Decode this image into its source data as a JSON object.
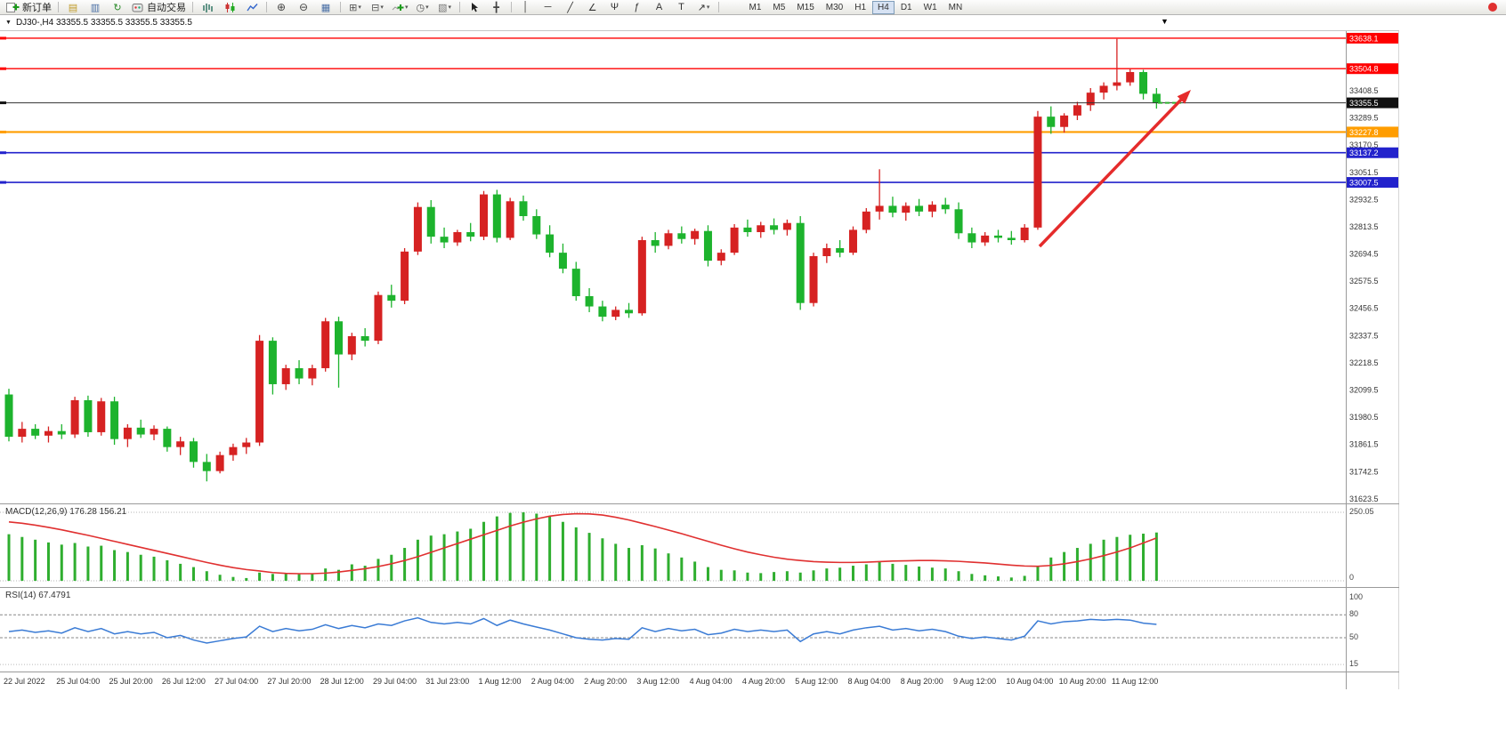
{
  "toolbar": {
    "items": [
      {
        "name": "new-order-button",
        "icon": "new-order",
        "label": "新订单"
      },
      {
        "name": "separator"
      },
      {
        "name": "market-watch-button",
        "glyph": "▤",
        "color": "#c09a28"
      },
      {
        "name": "data-window-button",
        "glyph": "▥",
        "color": "#4a6fa5"
      },
      {
        "name": "refresh-button",
        "glyph": "↻",
        "color": "#2a8a2a"
      },
      {
        "name": "autotrading-button",
        "icon": "autotrading",
        "label": "自动交易"
      },
      {
        "name": "separator"
      },
      {
        "name": "bar-chart-button",
        "icon": "bars"
      },
      {
        "name": "candlestick-chart-button",
        "icon": "candles"
      },
      {
        "name": "line-chart-button",
        "icon": "linechart"
      },
      {
        "name": "separator"
      },
      {
        "name": "zoom-in-button",
        "glyph": "⊕",
        "color": "#444",
        "size": "12px"
      },
      {
        "name": "zoom-out-button",
        "glyph": "⊖",
        "color": "#444",
        "size": "12px"
      },
      {
        "name": "tile-windows-button",
        "glyph": "▦",
        "color": "#4a6fa5"
      },
      {
        "name": "separator"
      },
      {
        "name": "new-chart-button",
        "glyph": "⊞",
        "color": "#555",
        "caret": true
      },
      {
        "name": "profiles-button",
        "glyph": "⊟",
        "color": "#555",
        "caret": true
      },
      {
        "name": "indicators-button",
        "icon": "indicator",
        "caret": true
      },
      {
        "name": "periods-button",
        "glyph": "◷",
        "color": "#555",
        "caret": true
      },
      {
        "name": "templates-button",
        "glyph": "▧",
        "color": "#777",
        "caret": true
      },
      {
        "name": "separator"
      },
      {
        "name": "cursor-button",
        "icon": "cursor"
      },
      {
        "name": "crosshair-button",
        "glyph": "╋",
        "color": "#444"
      },
      {
        "name": "separator"
      },
      {
        "name": "vertical-line-button",
        "glyph": "│",
        "color": "#333"
      },
      {
        "name": "horizontal-line-button",
        "glyph": "─",
        "color": "#333"
      },
      {
        "name": "trendline-button",
        "glyph": "╱",
        "color": "#333"
      },
      {
        "name": "equidistant-channel-button",
        "glyph": "∠",
        "color": "#333"
      },
      {
        "name": "andrews-pitchfork-button",
        "glyph": "Ψ",
        "color": "#333"
      },
      {
        "name": "fibonacci-button",
        "glyph": "ƒ",
        "color": "#333"
      },
      {
        "name": "text-button",
        "glyph": "A",
        "color": "#333"
      },
      {
        "name": "label-button",
        "glyph": "T",
        "color": "#333"
      },
      {
        "name": "arrows-button",
        "glyph": "↗",
        "color": "#333",
        "caret": true
      },
      {
        "name": "separator"
      }
    ],
    "timeframes": [
      "M1",
      "M5",
      "M15",
      "M30",
      "H1",
      "H4",
      "D1",
      "W1",
      "MN"
    ],
    "active_timeframe": "H4",
    "notification_color": "#e03030"
  },
  "chart": {
    "collapse_marker": "▼",
    "shift_marker": "▼",
    "title": "DJ30-,H4 33355.5 33355.5 33355.5 33355.5"
  },
  "macd": {
    "label_text": "MACD(12,26,9) 176.28 156.21",
    "scale_max": "250.05",
    "scale_min": "0"
  },
  "rsi": {
    "label_text": "RSI(14) 67.4791",
    "levels": [
      "100",
      "80",
      "50",
      "15"
    ]
  },
  "chart_data": {
    "type": "candlestick",
    "symbol": "DJ30-",
    "timeframe": "H4",
    "current_price": 33355.5,
    "ohlc_current": {
      "open": 33355.5,
      "high": 33355.5,
      "low": 33355.5,
      "close": 33355.5
    },
    "bull_color": "#d62222",
    "bear_color": "#1db32d",
    "price_axis_ticks": [
      "33408.5",
      "33289.5",
      "33170.5",
      "33051.5",
      "32932.5",
      "32813.5",
      "32694.5",
      "32575.5",
      "32456.5",
      "32337.5",
      "32218.5",
      "32099.5",
      "31980.5",
      "31861.5",
      "31742.5",
      "31623.5"
    ],
    "x_labels": [
      "22 Jul 2022",
      "25 Jul 04:00",
      "25 Jul 20:00",
      "26 Jul 12:00",
      "27 Jul 04:00",
      "27 Jul 20:00",
      "28 Jul 12:00",
      "29 Jul 04:00",
      "31 Jul 23:00",
      "1 Aug 12:00",
      "2 Aug 04:00",
      "2 Aug 20:00",
      "3 Aug 12:00",
      "4 Aug 04:00",
      "4 Aug 20:00",
      "5 Aug 12:00",
      "8 Aug 04:00",
      "8 Aug 20:00",
      "9 Aug 12:00",
      "10 Aug 04:00",
      "10 Aug 20:00",
      "11 Aug 12:00"
    ],
    "label_every": 4,
    "price_lines": [
      {
        "price": "33638.1",
        "color": "#ff0000",
        "width": 1.4
      },
      {
        "price": "33504.8",
        "color": "#ff0000",
        "width": 1.4
      },
      {
        "price": "33227.8",
        "color": "#ff9d00",
        "width": 2.2
      },
      {
        "price": "33137.2",
        "color": "#2222cc",
        "width": 1.6
      },
      {
        "price": "33007.5",
        "color": "#2222cc",
        "width": 1.6
      }
    ],
    "candles": [
      [
        32080,
        32105,
        31875,
        31895
      ],
      [
        31895,
        31960,
        31870,
        31930
      ],
      [
        31930,
        31950,
        31885,
        31900
      ],
      [
        31900,
        31940,
        31870,
        31920
      ],
      [
        31920,
        31950,
        31885,
        31905
      ],
      [
        31905,
        32070,
        31890,
        32055
      ],
      [
        32055,
        32075,
        31895,
        31915
      ],
      [
        31915,
        32065,
        31900,
        32050
      ],
      [
        32050,
        32070,
        31860,
        31885
      ],
      [
        31885,
        31950,
        31850,
        31935
      ],
      [
        31935,
        31970,
        31890,
        31905
      ],
      [
        31905,
        31945,
        31880,
        31930
      ],
      [
        31930,
        31940,
        31830,
        31850
      ],
      [
        31850,
        31895,
        31815,
        31875
      ],
      [
        31875,
        31890,
        31760,
        31785
      ],
      [
        31785,
        31820,
        31700,
        31745
      ],
      [
        31745,
        31830,
        31735,
        31815
      ],
      [
        31815,
        31865,
        31790,
        31850
      ],
      [
        31850,
        31890,
        31820,
        31870
      ],
      [
        31870,
        32340,
        31855,
        32315
      ],
      [
        32315,
        32330,
        32080,
        32125
      ],
      [
        32125,
        32210,
        32100,
        32195
      ],
      [
        32195,
        32230,
        32125,
        32150
      ],
      [
        32150,
        32210,
        32120,
        32195
      ],
      [
        32195,
        32415,
        32180,
        32400
      ],
      [
        32400,
        32420,
        32110,
        32255
      ],
      [
        32255,
        32350,
        32230,
        32335
      ],
      [
        32335,
        32370,
        32290,
        32315
      ],
      [
        32315,
        32530,
        32300,
        32515
      ],
      [
        32515,
        32560,
        32460,
        32490
      ],
      [
        32490,
        32720,
        32475,
        32705
      ],
      [
        32705,
        32920,
        32690,
        32900
      ],
      [
        32900,
        32930,
        32740,
        32770
      ],
      [
        32770,
        32810,
        32720,
        32745
      ],
      [
        32745,
        32800,
        32730,
        32790
      ],
      [
        32790,
        32830,
        32750,
        32770
      ],
      [
        32770,
        32970,
        32755,
        32955
      ],
      [
        32955,
        32975,
        32745,
        32765
      ],
      [
        32765,
        32940,
        32755,
        32925
      ],
      [
        32925,
        32950,
        32840,
        32860
      ],
      [
        32860,
        32890,
        32760,
        32780
      ],
      [
        32780,
        32820,
        32680,
        32700
      ],
      [
        32700,
        32740,
        32610,
        32630
      ],
      [
        32630,
        32660,
        32490,
        32510
      ],
      [
        32510,
        32545,
        32440,
        32465
      ],
      [
        32465,
        32490,
        32400,
        32420
      ],
      [
        32420,
        32465,
        32405,
        32450
      ],
      [
        32450,
        32480,
        32415,
        32435
      ],
      [
        32435,
        32770,
        32425,
        32755
      ],
      [
        32755,
        32790,
        32700,
        32730
      ],
      [
        32730,
        32800,
        32715,
        32785
      ],
      [
        32785,
        32815,
        32740,
        32760
      ],
      [
        32760,
        32805,
        32735,
        32795
      ],
      [
        32795,
        32820,
        32640,
        32665
      ],
      [
        32665,
        32715,
        32645,
        32700
      ],
      [
        32700,
        32825,
        32690,
        32810
      ],
      [
        32810,
        32845,
        32770,
        32790
      ],
      [
        32790,
        32835,
        32765,
        32820
      ],
      [
        32820,
        32850,
        32780,
        32800
      ],
      [
        32800,
        32845,
        32775,
        32830
      ],
      [
        32830,
        32860,
        32450,
        32480
      ],
      [
        32480,
        32700,
        32465,
        32685
      ],
      [
        32685,
        32740,
        32655,
        32720
      ],
      [
        32720,
        32755,
        32680,
        32700
      ],
      [
        32700,
        32815,
        32690,
        32800
      ],
      [
        32800,
        32895,
        32785,
        32880
      ],
      [
        32880,
        33065,
        32845,
        32905
      ],
      [
        32905,
        32945,
        32855,
        32875
      ],
      [
        32875,
        32920,
        32840,
        32905
      ],
      [
        32905,
        32935,
        32860,
        32880
      ],
      [
        32880,
        32925,
        32855,
        32910
      ],
      [
        32910,
        32940,
        32870,
        32890
      ],
      [
        32890,
        32920,
        32760,
        32785
      ],
      [
        32785,
        32810,
        32720,
        32745
      ],
      [
        32745,
        32790,
        32730,
        32775
      ],
      [
        32775,
        32800,
        32745,
        32765
      ],
      [
        32765,
        32795,
        32735,
        32755
      ],
      [
        32755,
        32825,
        32745,
        32810
      ],
      [
        32810,
        33320,
        32800,
        33295
      ],
      [
        33295,
        33340,
        33220,
        33250
      ],
      [
        33250,
        33310,
        33225,
        33300
      ],
      [
        33300,
        33360,
        33280,
        33345
      ],
      [
        33345,
        33420,
        33320,
        33400
      ],
      [
        33400,
        33445,
        33370,
        33430
      ],
      [
        33430,
        33635,
        33410,
        33445
      ],
      [
        33445,
        33505,
        33430,
        33490
      ],
      [
        33490,
        33500,
        33370,
        33395
      ],
      [
        33395,
        33420,
        33330,
        33355.5
      ]
    ],
    "macd": {
      "params": [
        12,
        26,
        9
      ],
      "main_value": 176.28,
      "signal_value": 156.21,
      "hist_color": "#2fae2f",
      "signal_color": "#e03030",
      "scale": [
        0,
        250.05
      ],
      "histogram": [
        170,
        160,
        150,
        140,
        132,
        138,
        125,
        128,
        112,
        105,
        95,
        88,
        75,
        62,
        50,
        35,
        22,
        14,
        10,
        30,
        25,
        28,
        24,
        26,
        45,
        40,
        60,
        55,
        80,
        95,
        120,
        150,
        165,
        170,
        180,
        190,
        215,
        235,
        248,
        250,
        245,
        235,
        215,
        195,
        175,
        155,
        135,
        120,
        130,
        118,
        100,
        85,
        70,
        50,
        40,
        38,
        30,
        28,
        32,
        35,
        30,
        38,
        45,
        48,
        55,
        60,
        68,
        62,
        58,
        52,
        48,
        45,
        35,
        25,
        20,
        16,
        12,
        18,
        55,
        85,
        105,
        120,
        135,
        150,
        160,
        168,
        172,
        176.28
      ],
      "signal": [
        215,
        210,
        203,
        195,
        186,
        176,
        166,
        155,
        144,
        133,
        122,
        111,
        100,
        89,
        78,
        67,
        57,
        48,
        41,
        36,
        30,
        27,
        26,
        26,
        28,
        32,
        38,
        44,
        52,
        62,
        74,
        88,
        104,
        120,
        136,
        152,
        168,
        184,
        200,
        214,
        226,
        236,
        242,
        245,
        244,
        240,
        232,
        222,
        210,
        198,
        185,
        172,
        158,
        144,
        130,
        117,
        105,
        95,
        86,
        79,
        74,
        70,
        68,
        67,
        67,
        68,
        70,
        72,
        73,
        74,
        74,
        73,
        71,
        68,
        65,
        61,
        57,
        54,
        53,
        56,
        62,
        70,
        80,
        92,
        105,
        120,
        138,
        156.21
      ]
    },
    "rsi": {
      "period": 14,
      "value": 67.4791,
      "color": "#3a7bd5",
      "levels": [
        80,
        50,
        15
      ],
      "values": [
        58,
        60,
        57,
        59,
        56,
        63,
        58,
        62,
        55,
        58,
        55,
        57,
        50,
        53,
        47,
        43,
        46,
        49,
        51,
        65,
        58,
        62,
        59,
        61,
        67,
        62,
        66,
        63,
        68,
        66,
        72,
        76,
        70,
        68,
        70,
        68,
        75,
        66,
        73,
        68,
        64,
        60,
        55,
        50,
        48,
        47,
        49,
        48,
        63,
        58,
        62,
        59,
        61,
        54,
        56,
        61,
        58,
        60,
        58,
        60,
        45,
        55,
        58,
        55,
        60,
        63,
        65,
        60,
        62,
        59,
        61,
        58,
        52,
        49,
        51,
        49,
        47,
        52,
        72,
        68,
        71,
        72,
        74,
        73,
        74,
        73,
        69,
        67.4791
      ]
    },
    "annotations": {
      "trend_arrow": {
        "color": "#e52b2b"
      }
    }
  }
}
